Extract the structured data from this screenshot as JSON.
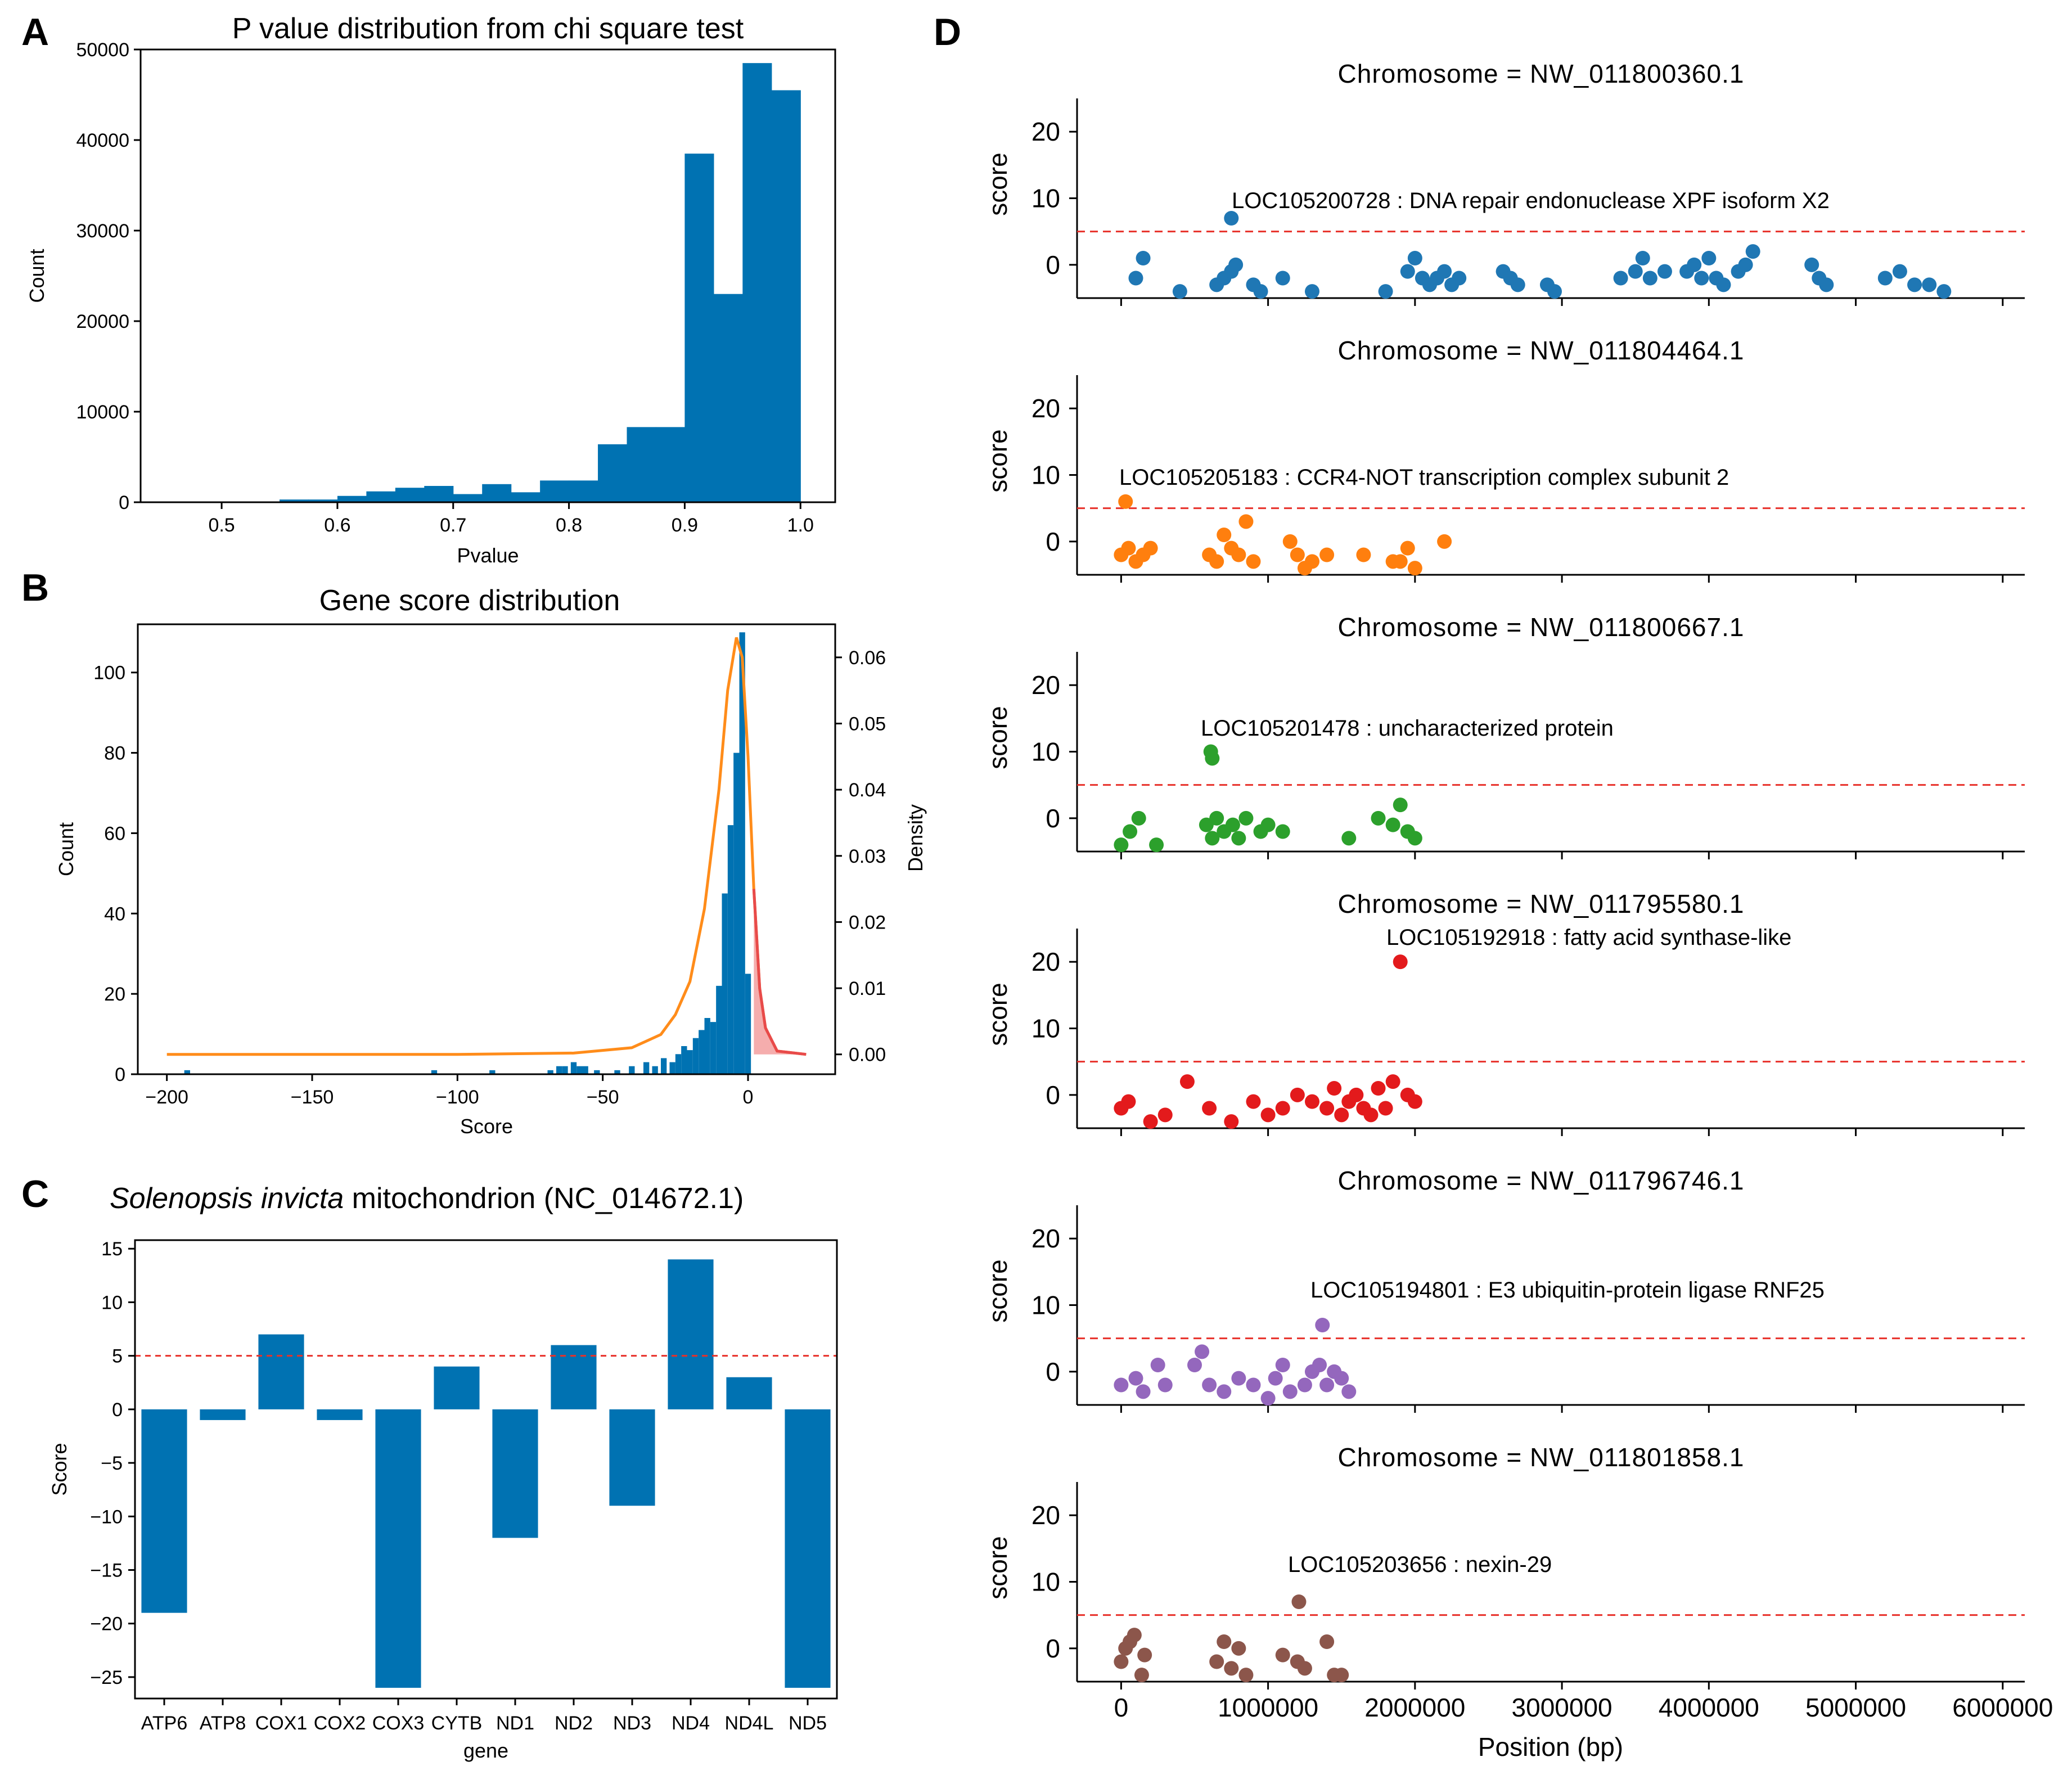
{
  "chart_data": [
    {
      "panel": "A",
      "type": "bar",
      "title": "P value distribution from chi square test",
      "xlabel": "Pvalue",
      "ylabel": "Count",
      "xlim": [
        0.43,
        1.03
      ],
      "ylim": [
        0,
        50000
      ],
      "xticks": [
        "0.5",
        "0.6",
        "0.7",
        "0.8",
        "0.9",
        "1.0"
      ],
      "yticks": [
        "0",
        "10000",
        "20000",
        "30000",
        "40000",
        "50000"
      ],
      "bins": [
        {
          "x0": 0.45,
          "x1": 0.55,
          "count": 0
        },
        {
          "x0": 0.55,
          "x1": 0.575,
          "count": 300
        },
        {
          "x0": 0.575,
          "x1": 0.6,
          "count": 300
        },
        {
          "x0": 0.6,
          "x1": 0.625,
          "count": 700
        },
        {
          "x0": 0.625,
          "x1": 0.65,
          "count": 1200
        },
        {
          "x0": 0.65,
          "x1": 0.675,
          "count": 1600
        },
        {
          "x0": 0.675,
          "x1": 0.7,
          "count": 1800
        },
        {
          "x0": 0.7,
          "x1": 0.725,
          "count": 900
        },
        {
          "x0": 0.725,
          "x1": 0.75,
          "count": 2000
        },
        {
          "x0": 0.75,
          "x1": 0.775,
          "count": 1100
        },
        {
          "x0": 0.775,
          "x1": 0.8,
          "count": 2400
        },
        {
          "x0": 0.8,
          "x1": 0.825,
          "count": 2400
        },
        {
          "x0": 0.825,
          "x1": 0.85,
          "count": 6400
        },
        {
          "x0": 0.85,
          "x1": 0.875,
          "count": 8300
        },
        {
          "x0": 0.875,
          "x1": 0.9,
          "count": 8300
        },
        {
          "x0": 0.9,
          "x1": 0.925,
          "count": 38500
        },
        {
          "x0": 0.925,
          "x1": 0.95,
          "count": 23000
        },
        {
          "x0": 0.95,
          "x1": 0.975,
          "count": 48500
        },
        {
          "x0": 0.975,
          "x1": 1.0,
          "count": 45500
        }
      ],
      "color": "#0072b2"
    },
    {
      "panel": "B",
      "type": "bar",
      "title": "Gene score distribution",
      "xlabel": "Score",
      "ylabel": "Count",
      "ylabel2": "Density",
      "xlim": [
        -210,
        30
      ],
      "ylim": [
        0,
        112
      ],
      "ylim2": [
        -0.003,
        0.065
      ],
      "xticks": [
        "−200",
        "−150",
        "−100",
        "−50",
        "0"
      ],
      "yticks": [
        "0",
        "20",
        "40",
        "60",
        "80",
        "100"
      ],
      "yticks2": [
        "0.00",
        "0.01",
        "0.02",
        "0.03",
        "0.04",
        "0.05",
        "0.06"
      ],
      "hist": [
        {
          "x": -193,
          "count": 1
        },
        {
          "x": -108,
          "count": 1
        },
        {
          "x": -88,
          "count": 1
        },
        {
          "x": -68,
          "count": 1
        },
        {
          "x": -65,
          "count": 2
        },
        {
          "x": -63,
          "count": 2
        },
        {
          "x": -60,
          "count": 3
        },
        {
          "x": -58,
          "count": 2
        },
        {
          "x": -56,
          "count": 2
        },
        {
          "x": -52,
          "count": 1
        },
        {
          "x": -45,
          "count": 1
        },
        {
          "x": -40,
          "count": 2
        },
        {
          "x": -35,
          "count": 3
        },
        {
          "x": -32,
          "count": 2
        },
        {
          "x": -29,
          "count": 4
        },
        {
          "x": -26,
          "count": 3
        },
        {
          "x": -24,
          "count": 5
        },
        {
          "x": -22,
          "count": 7
        },
        {
          "x": -20,
          "count": 6
        },
        {
          "x": -18,
          "count": 9
        },
        {
          "x": -16,
          "count": 11
        },
        {
          "x": -14,
          "count": 14
        },
        {
          "x": -12,
          "count": 13
        },
        {
          "x": -10,
          "count": 22
        },
        {
          "x": -8,
          "count": 45
        },
        {
          "x": -6,
          "count": 62
        },
        {
          "x": -4,
          "count": 80
        },
        {
          "x": -2,
          "count": 110
        },
        {
          "x": 0,
          "count": 25
        }
      ],
      "density_curve": [
        [
          -200,
          0.0
        ],
        [
          -150,
          0.0
        ],
        [
          -100,
          0.0
        ],
        [
          -60,
          0.0002
        ],
        [
          -40,
          0.001
        ],
        [
          -30,
          0.003
        ],
        [
          -25,
          0.006
        ],
        [
          -20,
          0.011
        ],
        [
          -15,
          0.022
        ],
        [
          -10,
          0.04
        ],
        [
          -7,
          0.055
        ],
        [
          -4,
          0.063
        ],
        [
          -2,
          0.06
        ],
        [
          0,
          0.045
        ],
        [
          2,
          0.025
        ],
        [
          4,
          0.01
        ],
        [
          6,
          0.004
        ],
        [
          10,
          0.0005
        ],
        [
          20,
          0.0
        ]
      ],
      "tail_shade": {
        "from": 2,
        "color": "#e84a4a"
      },
      "hist_color": "#0072b2",
      "curve_color": "#ff8c1a"
    },
    {
      "panel": "C",
      "type": "bar",
      "title_italic": "Solenopsis invicta",
      "title_rest": " mitochondrion (NC_014672.1)",
      "xlabel": "gene",
      "ylabel": "Score",
      "ylim": [
        -27,
        15.8
      ],
      "threshold": 5,
      "yticks": [
        "−25",
        "−20",
        "−15",
        "−10",
        "−5",
        "0",
        "5",
        "10",
        "15"
      ],
      "categories": [
        "ATP6",
        "ATP8",
        "COX1",
        "COX2",
        "COX3",
        "CYTB",
        "ND1",
        "ND2",
        "ND3",
        "ND4",
        "ND4L",
        "ND5"
      ],
      "values": [
        -19,
        -1,
        7,
        -1,
        -26,
        4,
        -12,
        6,
        -9,
        14,
        3,
        -26
      ],
      "color": "#0072b2"
    },
    {
      "panel": "D",
      "type": "scatter",
      "xlabel": "Position (bp)",
      "ylabel": "score",
      "xlim": [
        -300000,
        6150000
      ],
      "ylim": [
        -5,
        25
      ],
      "threshold": 5,
      "xticks": [
        "0",
        "1000000",
        "2000000",
        "3000000",
        "4000000",
        "5000000",
        "6000000"
      ],
      "yticks": [
        "0",
        "10",
        "20"
      ],
      "subplots": [
        {
          "title": "Chromosome = NW_011800360.1",
          "color": "#1f77b4",
          "annotation": "LOC105200728 : DNA repair endonuclease XPF isoform X2",
          "highlight": [
            750000,
            7
          ],
          "points": [
            [
              100000,
              -2
            ],
            [
              150000,
              1
            ],
            [
              400000,
              -4
            ],
            [
              650000,
              -3
            ],
            [
              700000,
              -2
            ],
            [
              750000,
              -1
            ],
            [
              780000,
              0
            ],
            [
              900000,
              -3
            ],
            [
              950000,
              -4
            ],
            [
              1100000,
              -2
            ],
            [
              1300000,
              -4
            ],
            [
              1800000,
              -4
            ],
            [
              1950000,
              -1
            ],
            [
              2000000,
              1
            ],
            [
              2050000,
              -2
            ],
            [
              2100000,
              -3
            ],
            [
              2150000,
              -2
            ],
            [
              2200000,
              -1
            ],
            [
              2250000,
              -3
            ],
            [
              2300000,
              -2
            ],
            [
              2600000,
              -1
            ],
            [
              2650000,
              -2
            ],
            [
              2700000,
              -3
            ],
            [
              2900000,
              -3
            ],
            [
              2950000,
              -4
            ],
            [
              3400000,
              -2
            ],
            [
              3500000,
              -1
            ],
            [
              3550000,
              1
            ],
            [
              3600000,
              -2
            ],
            [
              3700000,
              -1
            ],
            [
              3850000,
              -1
            ],
            [
              3900000,
              0
            ],
            [
              3950000,
              -2
            ],
            [
              4000000,
              1
            ],
            [
              4050000,
              -2
            ],
            [
              4100000,
              -3
            ],
            [
              4200000,
              -1
            ],
            [
              4250000,
              0
            ],
            [
              4300000,
              2
            ],
            [
              4700000,
              0
            ],
            [
              4750000,
              -2
            ],
            [
              4800000,
              -3
            ],
            [
              5200000,
              -2
            ],
            [
              5300000,
              -1
            ],
            [
              5400000,
              -3
            ],
            [
              5500000,
              -3
            ],
            [
              5600000,
              -4
            ]
          ]
        },
        {
          "title": "Chromosome = NW_011804464.1",
          "color": "#ff7f0e",
          "annotation": "LOC105205183 : CCR4-NOT transcription complex subunit 2",
          "highlight": [
            30000,
            6
          ],
          "points": [
            [
              0,
              -2
            ],
            [
              50000,
              -1
            ],
            [
              100000,
              -3
            ],
            [
              150000,
              -2
            ],
            [
              200000,
              -1
            ],
            [
              600000,
              -2
            ],
            [
              650000,
              -3
            ],
            [
              700000,
              1
            ],
            [
              750000,
              -1
            ],
            [
              800000,
              -2
            ],
            [
              850000,
              3
            ],
            [
              900000,
              -3
            ],
            [
              1150000,
              0
            ],
            [
              1200000,
              -2
            ],
            [
              1300000,
              -3
            ],
            [
              1400000,
              -2
            ],
            [
              1650000,
              -2
            ],
            [
              1850000,
              -3
            ],
            [
              1950000,
              -1
            ],
            [
              2000000,
              -4
            ],
            [
              2200000,
              0
            ],
            [
              1900000,
              -3
            ],
            [
              1250000,
              -4
            ]
          ]
        },
        {
          "title": "Chromosome = NW_011800667.1",
          "color": "#2ca02c",
          "annotation": "LOC105201478 : uncharacterized protein",
          "highlight": [
            610000,
            10
          ],
          "points": [
            [
              0,
              -4
            ],
            [
              60000,
              -2
            ],
            [
              120000,
              0
            ],
            [
              240000,
              -4
            ],
            [
              580000,
              -1
            ],
            [
              620000,
              -3
            ],
            [
              650000,
              0
            ],
            [
              700000,
              -2
            ],
            [
              760000,
              -1
            ],
            [
              800000,
              -3
            ],
            [
              850000,
              0
            ],
            [
              950000,
              -2
            ],
            [
              1000000,
              -1
            ],
            [
              1100000,
              -2
            ],
            [
              1550000,
              -3
            ],
            [
              1750000,
              0
            ],
            [
              1850000,
              -1
            ],
            [
              1900000,
              2
            ],
            [
              1950000,
              -2
            ],
            [
              2000000,
              -3
            ],
            [
              620000,
              9
            ]
          ]
        },
        {
          "title": "Chromosome = NW_011795580.1",
          "color": "#e31a1c",
          "annotation": "LOC105192918 : fatty acid synthase-like",
          "highlight": [
            1900000,
            20
          ],
          "points": [
            [
              0,
              -2
            ],
            [
              50000,
              -1
            ],
            [
              200000,
              -4
            ],
            [
              300000,
              -3
            ],
            [
              450000,
              2
            ],
            [
              600000,
              -2
            ],
            [
              750000,
              -4
            ],
            [
              900000,
              -1
            ],
            [
              1000000,
              -3
            ],
            [
              1100000,
              -2
            ],
            [
              1200000,
              0
            ],
            [
              1300000,
              -1
            ],
            [
              1400000,
              -2
            ],
            [
              1450000,
              1
            ],
            [
              1500000,
              -3
            ],
            [
              1550000,
              -1
            ],
            [
              1600000,
              0
            ],
            [
              1650000,
              -2
            ],
            [
              1700000,
              -3
            ],
            [
              1750000,
              1
            ],
            [
              1800000,
              -2
            ],
            [
              1850000,
              2
            ],
            [
              1950000,
              0
            ],
            [
              2000000,
              -1
            ]
          ]
        },
        {
          "title": "Chromosome = NW_011796746.1",
          "color": "#9467bd",
          "annotation": "LOC105194801 : E3 ubiquitin-protein ligase RNF25",
          "highlight": [
            1370000,
            7
          ],
          "points": [
            [
              0,
              -2
            ],
            [
              100000,
              -1
            ],
            [
              150000,
              -3
            ],
            [
              250000,
              1
            ],
            [
              300000,
              -2
            ],
            [
              500000,
              1
            ],
            [
              550000,
              3
            ],
            [
              600000,
              -2
            ],
            [
              700000,
              -3
            ],
            [
              800000,
              -1
            ],
            [
              900000,
              -2
            ],
            [
              1000000,
              -4
            ],
            [
              1050000,
              -1
            ],
            [
              1100000,
              1
            ],
            [
              1150000,
              -3
            ],
            [
              1250000,
              -2
            ],
            [
              1300000,
              0
            ],
            [
              1350000,
              1
            ],
            [
              1400000,
              -2
            ],
            [
              1450000,
              0
            ],
            [
              1500000,
              -1
            ],
            [
              1550000,
              -3
            ]
          ]
        },
        {
          "title": "Chromosome = NW_011801858.1",
          "color": "#8c564b",
          "annotation": "LOC105203656 : nexin-29",
          "highlight": [
            1210000,
            7
          ],
          "points": [
            [
              0,
              -2
            ],
            [
              30000,
              0
            ],
            [
              60000,
              1
            ],
            [
              90000,
              2
            ],
            [
              140000,
              -4
            ],
            [
              160000,
              -1
            ],
            [
              650000,
              -2
            ],
            [
              700000,
              1
            ],
            [
              750000,
              -3
            ],
            [
              800000,
              0
            ],
            [
              850000,
              -4
            ],
            [
              1100000,
              -1
            ],
            [
              1200000,
              -2
            ],
            [
              1250000,
              -3
            ],
            [
              1400000,
              1
            ],
            [
              1450000,
              -4
            ],
            [
              1500000,
              -4
            ]
          ]
        }
      ]
    }
  ],
  "panels": {
    "A": {
      "letter": "A"
    },
    "B": {
      "letter": "B"
    },
    "C": {
      "letter": "C"
    },
    "D": {
      "letter": "D"
    }
  }
}
